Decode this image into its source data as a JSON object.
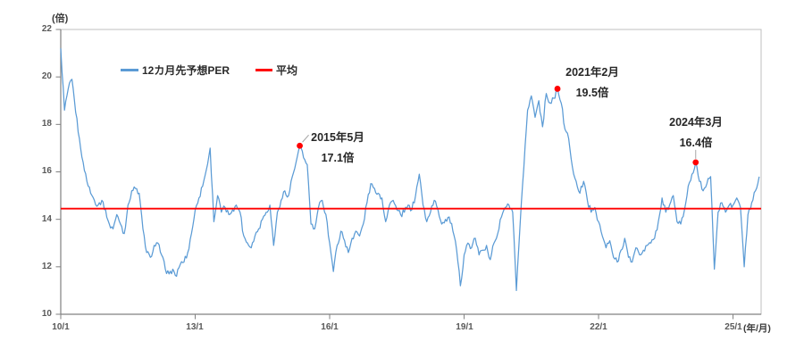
{
  "chart": {
    "y_axis": {
      "unit_label": "(倍)",
      "tick_labels": [
        "22",
        "20",
        "18",
        "16",
        "14",
        "12",
        "10"
      ]
    },
    "x_axis": {
      "unit_label": "(年/月)",
      "tick_labels": [
        "10/1",
        "13/1",
        "16/1",
        "19/1",
        "22/1",
        "25/1"
      ]
    },
    "legend": {
      "series1": "12カ月先予想PER",
      "series2": "平均"
    }
  },
  "annotations": [
    {
      "line1": "2015年5月",
      "line2": "17.1倍",
      "x_year": 2015.333,
      "value": 17.1
    },
    {
      "line1": "2021年2月",
      "line2": "19.5倍",
      "x_year": 2021.083,
      "value": 19.5
    },
    {
      "line1": "2024年3月",
      "line2": "16.4倍",
      "x_year": 2024.167,
      "value": 16.4
    }
  ],
  "colors": {
    "series": "#5B9BD5",
    "average": "#FF0000",
    "marker": "#FF0000",
    "axis": "#808080",
    "border": "#BFBFBF",
    "tick_text": "#595959",
    "leader": "#A6A6A6"
  },
  "chart_data": {
    "type": "line",
    "title": "",
    "xlabel": "(年/月)",
    "ylabel": "(倍)",
    "ylim": [
      10,
      22
    ],
    "x_start_year": 2010,
    "x_step_months": 1,
    "x_tick_years": [
      2010,
      2013,
      2016,
      2019,
      2022,
      2025
    ],
    "grid": false,
    "legend_position": "top-left-inside",
    "series": [
      {
        "name": "12カ月先予想PER",
        "type": "line",
        "color": "#5B9BD5",
        "values": [
          21.2,
          18.6,
          19.5,
          19.9,
          18.5,
          17.4,
          16.4,
          15.6,
          15.1,
          14.8,
          14.6,
          14.8,
          14.4,
          13.8,
          13.6,
          14.2,
          13.8,
          13.4,
          14.6,
          15.2,
          15.3,
          15.1,
          13.6,
          12.6,
          12.4,
          12.9,
          13.0,
          12.5,
          11.9,
          11.7,
          11.9,
          11.6,
          12.1,
          12.2,
          12.6,
          13.4,
          14.4,
          14.9,
          15.4,
          16.1,
          17.0,
          13.9,
          15.0,
          14.3,
          14.5,
          14.2,
          14.4,
          14.6,
          14.3,
          13.3,
          13.0,
          12.8,
          13.3,
          13.6,
          14.0,
          14.3,
          14.6,
          12.9,
          14.3,
          14.8,
          15.2,
          15.0,
          15.8,
          16.4,
          17.1,
          16.6,
          16.3,
          13.8,
          13.6,
          14.5,
          14.8,
          14.2,
          13.0,
          11.8,
          12.9,
          13.5,
          13.1,
          12.6,
          13.2,
          13.5,
          13.3,
          13.8,
          14.7,
          15.5,
          15.3,
          15.1,
          14.9,
          13.9,
          14.6,
          14.8,
          14.4,
          14.2,
          14.3,
          14.6,
          14.4,
          15.0,
          15.9,
          14.6,
          13.9,
          14.3,
          14.8,
          14.4,
          13.8,
          14.0,
          14.1,
          13.5,
          12.7,
          11.2,
          12.5,
          13.0,
          12.8,
          13.2,
          12.5,
          12.7,
          12.9,
          12.3,
          13.0,
          13.4,
          14.1,
          14.5,
          14.6,
          14.3,
          11.0,
          13.8,
          16.2,
          18.6,
          19.2,
          18.3,
          19.0,
          17.9,
          19.3,
          18.9,
          19.1,
          19.5,
          18.9,
          17.8,
          17.4,
          16.2,
          15.6,
          15.1,
          15.6,
          14.8,
          14.3,
          14.5,
          13.9,
          13.3,
          12.8,
          13.1,
          12.4,
          12.2,
          12.7,
          13.2,
          12.4,
          12.2,
          12.8,
          12.5,
          12.7,
          12.9,
          13.0,
          13.2,
          13.9,
          14.9,
          14.3,
          14.6,
          15.0,
          13.9,
          13.8,
          14.4,
          15.4,
          15.9,
          16.4,
          15.6,
          15.2,
          15.5,
          15.8,
          11.9,
          14.3,
          14.7,
          14.3,
          14.6,
          14.6,
          14.9,
          14.5,
          12.0,
          14.2,
          14.7,
          15.2,
          15.8
        ]
      },
      {
        "name": "平均",
        "type": "hline",
        "color": "#FF0000",
        "value": 14.45
      }
    ]
  }
}
